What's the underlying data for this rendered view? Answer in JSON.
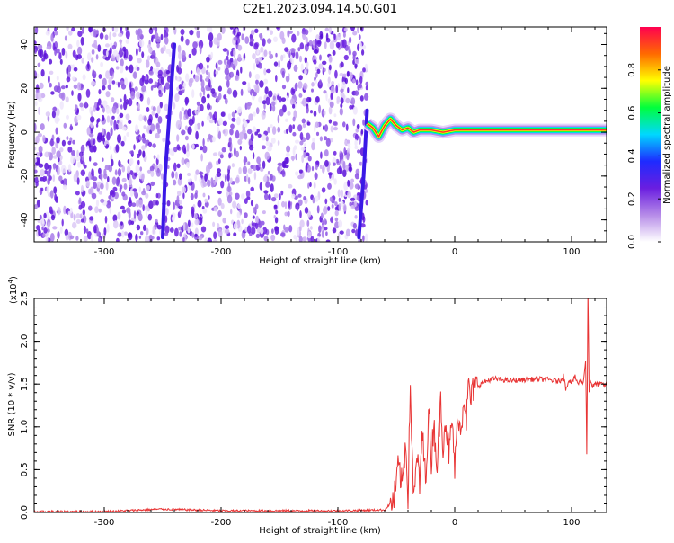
{
  "title": "C2E1.2023.094.14.50.G01",
  "colors": {
    "snr_line": "#e83434",
    "spectrum_base": "#6a1ee0",
    "spectrum_light": "#c9aaf2"
  },
  "chart_data": [
    {
      "type": "heatmap",
      "name": "spectrogram",
      "xlabel": "Height of straight line (km)",
      "ylabel": "Frequency (Hz)",
      "xlim": [
        -360,
        130
      ],
      "ylim": [
        -50,
        48
      ],
      "xticks": [
        -300,
        -200,
        -100,
        0,
        100
      ],
      "yticks": [
        -40,
        -20,
        0,
        20,
        40
      ],
      "colorbar": {
        "label": "Normalized spectral amplitude",
        "range": [
          0.0,
          1.0
        ],
        "ticks": [
          "0.0",
          "0.2",
          "0.4",
          "0.6",
          "0.8"
        ],
        "colormap": [
          "#ffffff",
          "#b68be8",
          "#6a1ee0",
          "#1e2bff",
          "#00d8ff",
          "#00ff3c",
          "#ffff00",
          "#ff6a00",
          "#ff0050"
        ]
      },
      "noise_region_end_km": -75,
      "tracks": [
        {
          "x": [
            -250,
            -248,
            -244,
            -240
          ],
          "y": [
            -48,
            -20,
            10,
            40
          ]
        },
        {
          "x": [
            -82,
            -78,
            -75
          ],
          "y": [
            -48,
            -20,
            10
          ]
        }
      ],
      "signal_ridge": {
        "x": [
          -75,
          -70,
          -65,
          -60,
          -55,
          -50,
          -45,
          -40,
          -35,
          -30,
          -20,
          -10,
          0,
          20,
          40,
          60,
          80,
          100,
          120,
          130
        ],
        "y": [
          4,
          2,
          -2,
          3,
          6,
          3,
          1,
          2,
          0,
          1,
          1,
          0,
          1,
          1,
          1,
          1,
          1,
          1,
          1,
          1
        ]
      }
    },
    {
      "type": "line",
      "name": "snr",
      "xlabel": "Height of straight line (km)",
      "ylabel": "SNR (10 * v/v)",
      "scale_note": "(x10",
      "scale_exp": "4",
      "scale_close": ")",
      "xlim": [
        -360,
        130
      ],
      "ylim": [
        0.0,
        2.5
      ],
      "xticks": [
        -300,
        -200,
        -100,
        0,
        100
      ],
      "yticks": [
        "0.0",
        "0.5",
        "1.0",
        "1.5",
        "2.0",
        "2.5"
      ],
      "series": [
        {
          "x": [
            -360,
            -300,
            -250,
            -200,
            -150,
            -100,
            -60,
            -52,
            -48,
            -45,
            -42,
            -40,
            -38,
            -35,
            -32,
            -30,
            -28,
            -25,
            -22,
            -20,
            -18,
            -15,
            -12,
            -10,
            -8,
            -5,
            -2,
            0,
            3,
            5,
            8,
            10,
            12,
            14,
            16,
            20,
            25,
            30,
            35,
            40,
            50,
            60,
            70,
            80,
            90,
            93,
            95,
            98,
            100,
            103,
            106,
            108,
            110,
            112,
            113,
            114,
            115,
            116,
            118,
            120,
            125,
            130
          ],
          "y": [
            0.01,
            0.01,
            0.04,
            0.02,
            0.02,
            0.02,
            0.03,
            0.15,
            0.55,
            0.3,
            0.85,
            0.2,
            1.45,
            0.1,
            0.7,
            0.25,
            0.95,
            0.4,
            1.2,
            0.6,
            1.05,
            0.55,
            1.3,
            0.8,
            1.1,
            0.7,
            1.05,
            0.5,
            1.2,
            0.9,
            1.4,
            1.1,
            1.5,
            1.3,
            1.45,
            1.48,
            1.52,
            1.55,
            1.56,
            1.55,
            1.54,
            1.55,
            1.56,
            1.55,
            1.53,
            1.6,
            1.45,
            1.55,
            1.52,
            1.58,
            1.5,
            1.55,
            1.5,
            1.8,
            0.7,
            2.6,
            1.4,
            1.55,
            1.47,
            1.5,
            1.5,
            1.48
          ]
        }
      ]
    }
  ]
}
